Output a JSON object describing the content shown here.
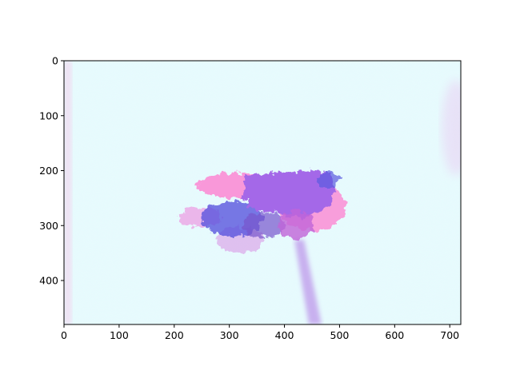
{
  "figure": {
    "image_description_colors": {
      "background": "#e6fdfd",
      "blob_purple": "#a066e6",
      "blob_pink": "#ff66cc",
      "blob_blue": "#5555dd",
      "stem": "#c2a8ec"
    }
  },
  "axes": {
    "x": {
      "range": [
        0,
        720
      ],
      "ticks": [
        {
          "value": 0,
          "label": "0"
        },
        {
          "value": 100,
          "label": "100"
        },
        {
          "value": 200,
          "label": "200"
        },
        {
          "value": 300,
          "label": "300"
        },
        {
          "value": 400,
          "label": "400"
        },
        {
          "value": 500,
          "label": "500"
        },
        {
          "value": 600,
          "label": "600"
        },
        {
          "value": 700,
          "label": "700"
        }
      ]
    },
    "y": {
      "range": [
        0,
        480
      ],
      "inverted": true,
      "ticks": [
        {
          "value": 0,
          "label": "0"
        },
        {
          "value": 100,
          "label": "100"
        },
        {
          "value": 200,
          "label": "200"
        },
        {
          "value": 300,
          "label": "300"
        },
        {
          "value": 400,
          "label": "400"
        }
      ]
    }
  }
}
